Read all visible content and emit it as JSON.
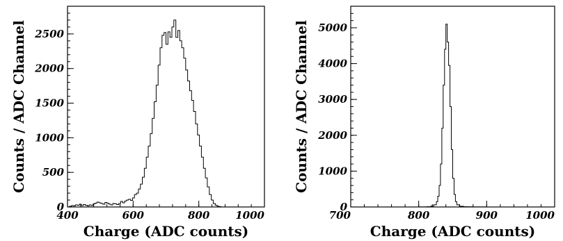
{
  "chart_data": [
    {
      "type": "histogram",
      "xlabel": "Charge (ADC counts)",
      "ylabel": "Counts / ADC Channel",
      "xlim": [
        400,
        1000
      ],
      "ylim": [
        0,
        2900
      ],
      "xticks": [
        400,
        600,
        800,
        1000
      ],
      "yticks": [
        0,
        500,
        1000,
        1500,
        2000,
        2500
      ],
      "grid": false,
      "bin_width": 6,
      "series": [
        {
          "x": [
            400,
            406,
            412,
            418,
            424,
            430,
            436,
            442,
            448,
            454,
            460,
            466,
            472,
            478,
            484,
            490,
            496,
            502,
            508,
            514,
            520,
            526,
            532,
            538,
            544,
            550,
            556,
            562,
            568,
            574,
            580,
            586,
            592,
            598,
            604,
            610,
            616,
            622,
            628,
            634,
            640,
            646,
            652,
            658,
            664,
            670,
            676,
            682,
            688,
            694,
            700,
            706,
            712,
            718,
            724,
            730,
            736,
            742,
            748,
            754,
            760,
            766,
            772,
            778,
            784,
            790,
            796,
            802,
            808,
            814,
            820,
            826,
            832,
            838,
            844,
            850,
            856,
            862,
            868
          ],
          "values": [
            0,
            10,
            20,
            15,
            30,
            25,
            40,
            20,
            35,
            25,
            15,
            30,
            20,
            45,
            55,
            70,
            60,
            50,
            40,
            65,
            55,
            40,
            30,
            50,
            45,
            35,
            50,
            80,
            60,
            85,
            100,
            110,
            95,
            130,
            180,
            200,
            260,
            330,
            430,
            560,
            720,
            880,
            1060,
            1280,
            1520,
            1760,
            2050,
            2300,
            2480,
            2520,
            2350,
            2530,
            2450,
            2600,
            2700,
            2450,
            2550,
            2400,
            2300,
            2150,
            1980,
            1820,
            1680,
            1540,
            1380,
            1200,
            1040,
            880,
            720,
            560,
            420,
            290,
            180,
            100,
            50,
            25,
            10,
            5,
            0
          ]
        }
      ]
    },
    {
      "type": "histogram",
      "xlabel": "Charge (ADC counts)",
      "ylabel": "Counts / ADC Channel",
      "xlim": [
        700,
        1000
      ],
      "ylim": [
        0,
        5600
      ],
      "xticks": [
        700,
        800,
        900,
        1000
      ],
      "yticks": [
        0,
        1000,
        2000,
        3000,
        4000,
        5000
      ],
      "grid": false,
      "bin_width": 2,
      "series": [
        {
          "x": [
            700,
            800,
            812,
            818,
            822,
            826,
            828,
            830,
            832,
            834,
            836,
            838,
            840,
            842,
            844,
            846,
            848,
            850,
            852,
            854,
            856,
            860,
            866,
            872,
            880,
            900,
            1000
          ],
          "values": [
            0,
            2,
            8,
            25,
            60,
            150,
            300,
            600,
            1200,
            2200,
            3400,
            4400,
            5100,
            4600,
            3950,
            2800,
            1600,
            800,
            350,
            150,
            60,
            20,
            8,
            3,
            1,
            0,
            0
          ]
        }
      ]
    }
  ]
}
